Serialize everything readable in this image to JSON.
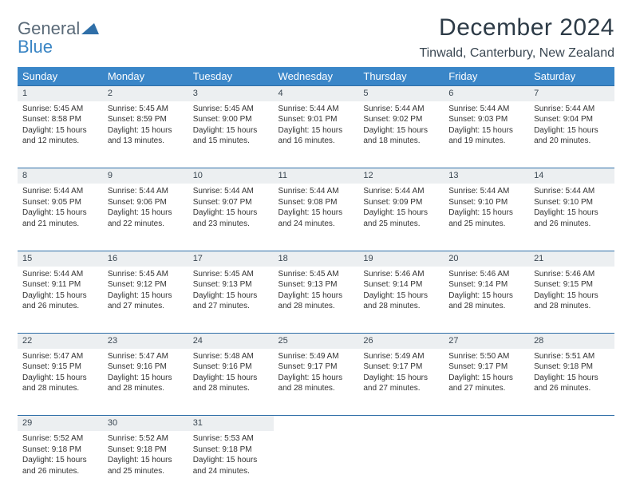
{
  "brand": {
    "word1": "General",
    "word2": "Blue",
    "word1_color": "#5a6a78",
    "word2_color": "#3a85c4",
    "mark_color": "#2f6fa8"
  },
  "header": {
    "month_title": "December 2024",
    "location": "Tinwald, Canterbury, New Zealand"
  },
  "style": {
    "header_bg": "#3a86c8",
    "header_text": "#ffffff",
    "daynum_bg": "#eceff1",
    "row_border": "#2f6fa8",
    "body_text": "#333333",
    "title_color": "#2d3b47",
    "location_color": "#3a4752",
    "font_family": "Arial",
    "th_fontsize": 13,
    "cell_fontsize": 10,
    "page_bg": "#ffffff"
  },
  "weekdays": [
    "Sunday",
    "Monday",
    "Tuesday",
    "Wednesday",
    "Thursday",
    "Friday",
    "Saturday"
  ],
  "weeks": [
    [
      {
        "n": "1",
        "sr": "5:45 AM",
        "ss": "8:58 PM",
        "dl": "15 hours and 12 minutes."
      },
      {
        "n": "2",
        "sr": "5:45 AM",
        "ss": "8:59 PM",
        "dl": "15 hours and 13 minutes."
      },
      {
        "n": "3",
        "sr": "5:45 AM",
        "ss": "9:00 PM",
        "dl": "15 hours and 15 minutes."
      },
      {
        "n": "4",
        "sr": "5:44 AM",
        "ss": "9:01 PM",
        "dl": "15 hours and 16 minutes."
      },
      {
        "n": "5",
        "sr": "5:44 AM",
        "ss": "9:02 PM",
        "dl": "15 hours and 18 minutes."
      },
      {
        "n": "6",
        "sr": "5:44 AM",
        "ss": "9:03 PM",
        "dl": "15 hours and 19 minutes."
      },
      {
        "n": "7",
        "sr": "5:44 AM",
        "ss": "9:04 PM",
        "dl": "15 hours and 20 minutes."
      }
    ],
    [
      {
        "n": "8",
        "sr": "5:44 AM",
        "ss": "9:05 PM",
        "dl": "15 hours and 21 minutes."
      },
      {
        "n": "9",
        "sr": "5:44 AM",
        "ss": "9:06 PM",
        "dl": "15 hours and 22 minutes."
      },
      {
        "n": "10",
        "sr": "5:44 AM",
        "ss": "9:07 PM",
        "dl": "15 hours and 23 minutes."
      },
      {
        "n": "11",
        "sr": "5:44 AM",
        "ss": "9:08 PM",
        "dl": "15 hours and 24 minutes."
      },
      {
        "n": "12",
        "sr": "5:44 AM",
        "ss": "9:09 PM",
        "dl": "15 hours and 25 minutes."
      },
      {
        "n": "13",
        "sr": "5:44 AM",
        "ss": "9:10 PM",
        "dl": "15 hours and 25 minutes."
      },
      {
        "n": "14",
        "sr": "5:44 AM",
        "ss": "9:10 PM",
        "dl": "15 hours and 26 minutes."
      }
    ],
    [
      {
        "n": "15",
        "sr": "5:44 AM",
        "ss": "9:11 PM",
        "dl": "15 hours and 26 minutes."
      },
      {
        "n": "16",
        "sr": "5:45 AM",
        "ss": "9:12 PM",
        "dl": "15 hours and 27 minutes."
      },
      {
        "n": "17",
        "sr": "5:45 AM",
        "ss": "9:13 PM",
        "dl": "15 hours and 27 minutes."
      },
      {
        "n": "18",
        "sr": "5:45 AM",
        "ss": "9:13 PM",
        "dl": "15 hours and 28 minutes."
      },
      {
        "n": "19",
        "sr": "5:46 AM",
        "ss": "9:14 PM",
        "dl": "15 hours and 28 minutes."
      },
      {
        "n": "20",
        "sr": "5:46 AM",
        "ss": "9:14 PM",
        "dl": "15 hours and 28 minutes."
      },
      {
        "n": "21",
        "sr": "5:46 AM",
        "ss": "9:15 PM",
        "dl": "15 hours and 28 minutes."
      }
    ],
    [
      {
        "n": "22",
        "sr": "5:47 AM",
        "ss": "9:15 PM",
        "dl": "15 hours and 28 minutes."
      },
      {
        "n": "23",
        "sr": "5:47 AM",
        "ss": "9:16 PM",
        "dl": "15 hours and 28 minutes."
      },
      {
        "n": "24",
        "sr": "5:48 AM",
        "ss": "9:16 PM",
        "dl": "15 hours and 28 minutes."
      },
      {
        "n": "25",
        "sr": "5:49 AM",
        "ss": "9:17 PM",
        "dl": "15 hours and 28 minutes."
      },
      {
        "n": "26",
        "sr": "5:49 AM",
        "ss": "9:17 PM",
        "dl": "15 hours and 27 minutes."
      },
      {
        "n": "27",
        "sr": "5:50 AM",
        "ss": "9:17 PM",
        "dl": "15 hours and 27 minutes."
      },
      {
        "n": "28",
        "sr": "5:51 AM",
        "ss": "9:18 PM",
        "dl": "15 hours and 26 minutes."
      }
    ],
    [
      {
        "n": "29",
        "sr": "5:52 AM",
        "ss": "9:18 PM",
        "dl": "15 hours and 26 minutes."
      },
      {
        "n": "30",
        "sr": "5:52 AM",
        "ss": "9:18 PM",
        "dl": "15 hours and 25 minutes."
      },
      {
        "n": "31",
        "sr": "5:53 AM",
        "ss": "9:18 PM",
        "dl": "15 hours and 24 minutes."
      },
      null,
      null,
      null,
      null
    ]
  ],
  "labels": {
    "sunrise_prefix": "Sunrise: ",
    "sunset_prefix": "Sunset: ",
    "daylight_prefix": "Daylight: "
  }
}
